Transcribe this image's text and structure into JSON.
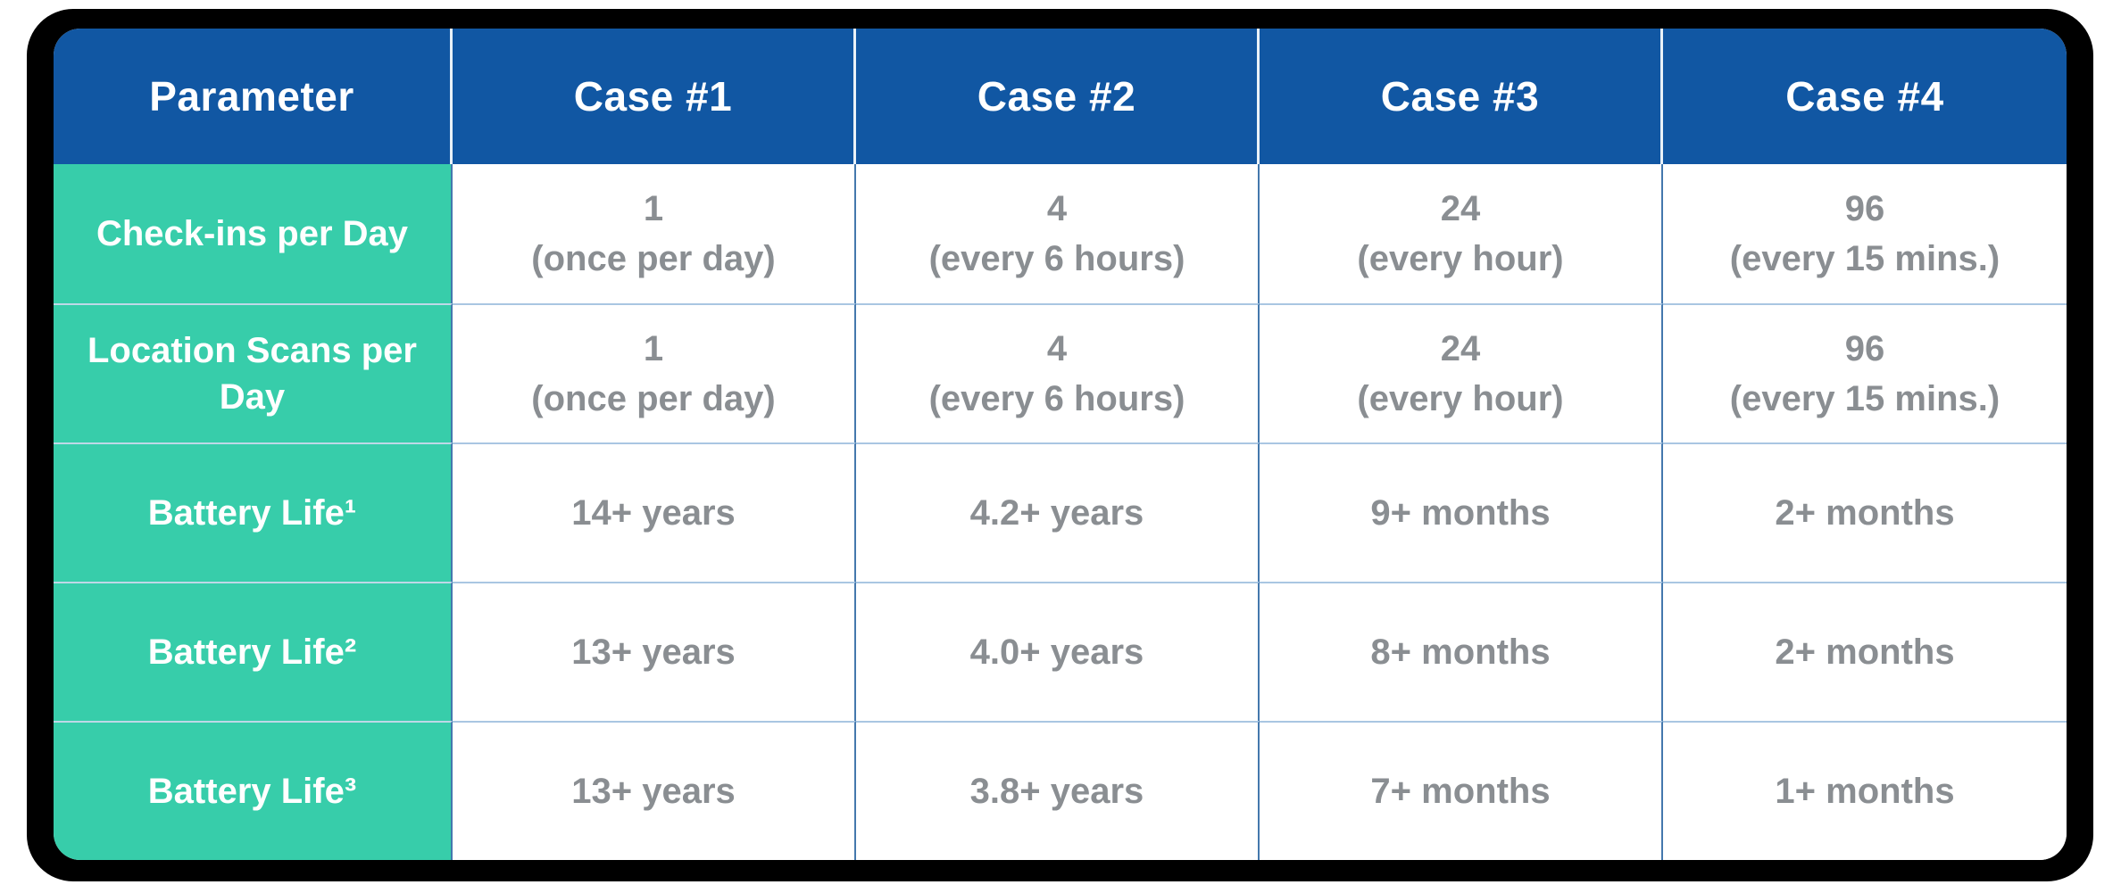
{
  "chart_data": {
    "type": "table",
    "columns": [
      "Parameter",
      "Case #1",
      "Case #2",
      "Case #3",
      "Case #4"
    ],
    "rows": [
      {
        "label": "Check-ins per Day",
        "cells": [
          {
            "main": "1",
            "sub": "(once per day)"
          },
          {
            "main": "4",
            "sub": "(every 6 hours)"
          },
          {
            "main": "24",
            "sub": "(every hour)"
          },
          {
            "main": "96",
            "sub": "(every 15 mins.)"
          }
        ]
      },
      {
        "label": "Location Scans per Day",
        "cells": [
          {
            "main": "1",
            "sub": "(once per day)"
          },
          {
            "main": "4",
            "sub": "(every 6 hours)"
          },
          {
            "main": "24",
            "sub": "(every hour)"
          },
          {
            "main": "96",
            "sub": "(every 15 mins.)"
          }
        ]
      },
      {
        "label": "Battery Life¹",
        "cells": [
          {
            "main": "14+ years",
            "sub": ""
          },
          {
            "main": "4.2+ years",
            "sub": ""
          },
          {
            "main": "9+ months",
            "sub": ""
          },
          {
            "main": "2+ months",
            "sub": ""
          }
        ]
      },
      {
        "label": "Battery Life²",
        "cells": [
          {
            "main": "13+ years",
            "sub": ""
          },
          {
            "main": "4.0+ years",
            "sub": ""
          },
          {
            "main": "8+ months",
            "sub": ""
          },
          {
            "main": "2+ months",
            "sub": ""
          }
        ]
      },
      {
        "label": "Battery Life³",
        "cells": [
          {
            "main": "13+ years",
            "sub": ""
          },
          {
            "main": "3.8+ years",
            "sub": ""
          },
          {
            "main": "7+ months",
            "sub": ""
          },
          {
            "main": "1+ months",
            "sub": ""
          }
        ]
      }
    ],
    "colors": {
      "header_bg": "#1157a3",
      "parameter_bg": "#37cdaa",
      "frame": "#000000",
      "value_text": "#8a8e92",
      "horizontal_line": "#a9c6e2",
      "vertical_line": "#4478ad"
    }
  }
}
